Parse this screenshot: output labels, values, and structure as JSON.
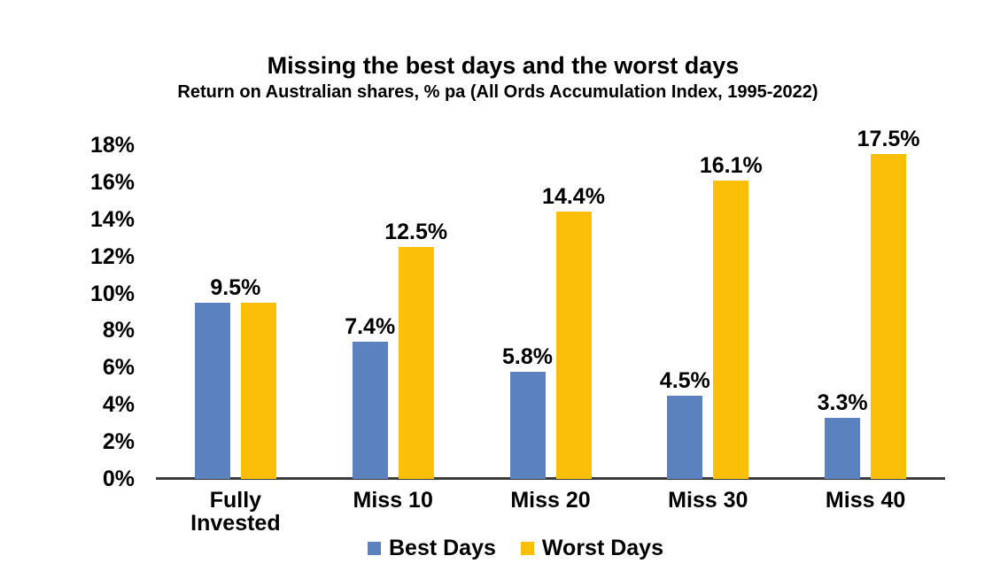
{
  "chart_data": {
    "type": "bar",
    "title": "Missing the best days and the worst days",
    "subtitle": "Return on Australian shares, % pa (All Ords Accumulation Index, 1995-2022)",
    "categories": [
      "Fully Invested",
      "Miss 10",
      "Miss 20",
      "Miss 30",
      "Miss 40"
    ],
    "series": [
      {
        "name": "Best Days",
        "color": "#5B82BE",
        "values": [
          9.5,
          7.4,
          5.8,
          4.5,
          3.3
        ],
        "data_labels": [
          "9.5%",
          "7.4%",
          "5.8%",
          "4.5%",
          "3.3%"
        ]
      },
      {
        "name": "Worst Days",
        "color": "#FBBF0A",
        "values": [
          9.5,
          12.5,
          14.4,
          16.1,
          17.5
        ],
        "data_labels": [
          null,
          "12.5%",
          "14.4%",
          "16.1%",
          "17.5%"
        ]
      }
    ],
    "shared_first_label": true,
    "y_axis": {
      "min": 0,
      "max": 18,
      "tick_step": 2,
      "ticks": [
        "18%",
        "16%",
        "14%",
        "12%",
        "10%",
        "8%",
        "6%",
        "4%",
        "2%",
        "0%"
      ],
      "grid": false
    },
    "legend": {
      "position": "bottom",
      "entries": [
        {
          "label": "Best Days",
          "color": "#5B82BE"
        },
        {
          "label": "Worst Days",
          "color": "#FBBF0A"
        }
      ]
    },
    "axis_line_color": "#3B3B3B",
    "text_color": "#000000",
    "background": "#FFFFFF"
  }
}
